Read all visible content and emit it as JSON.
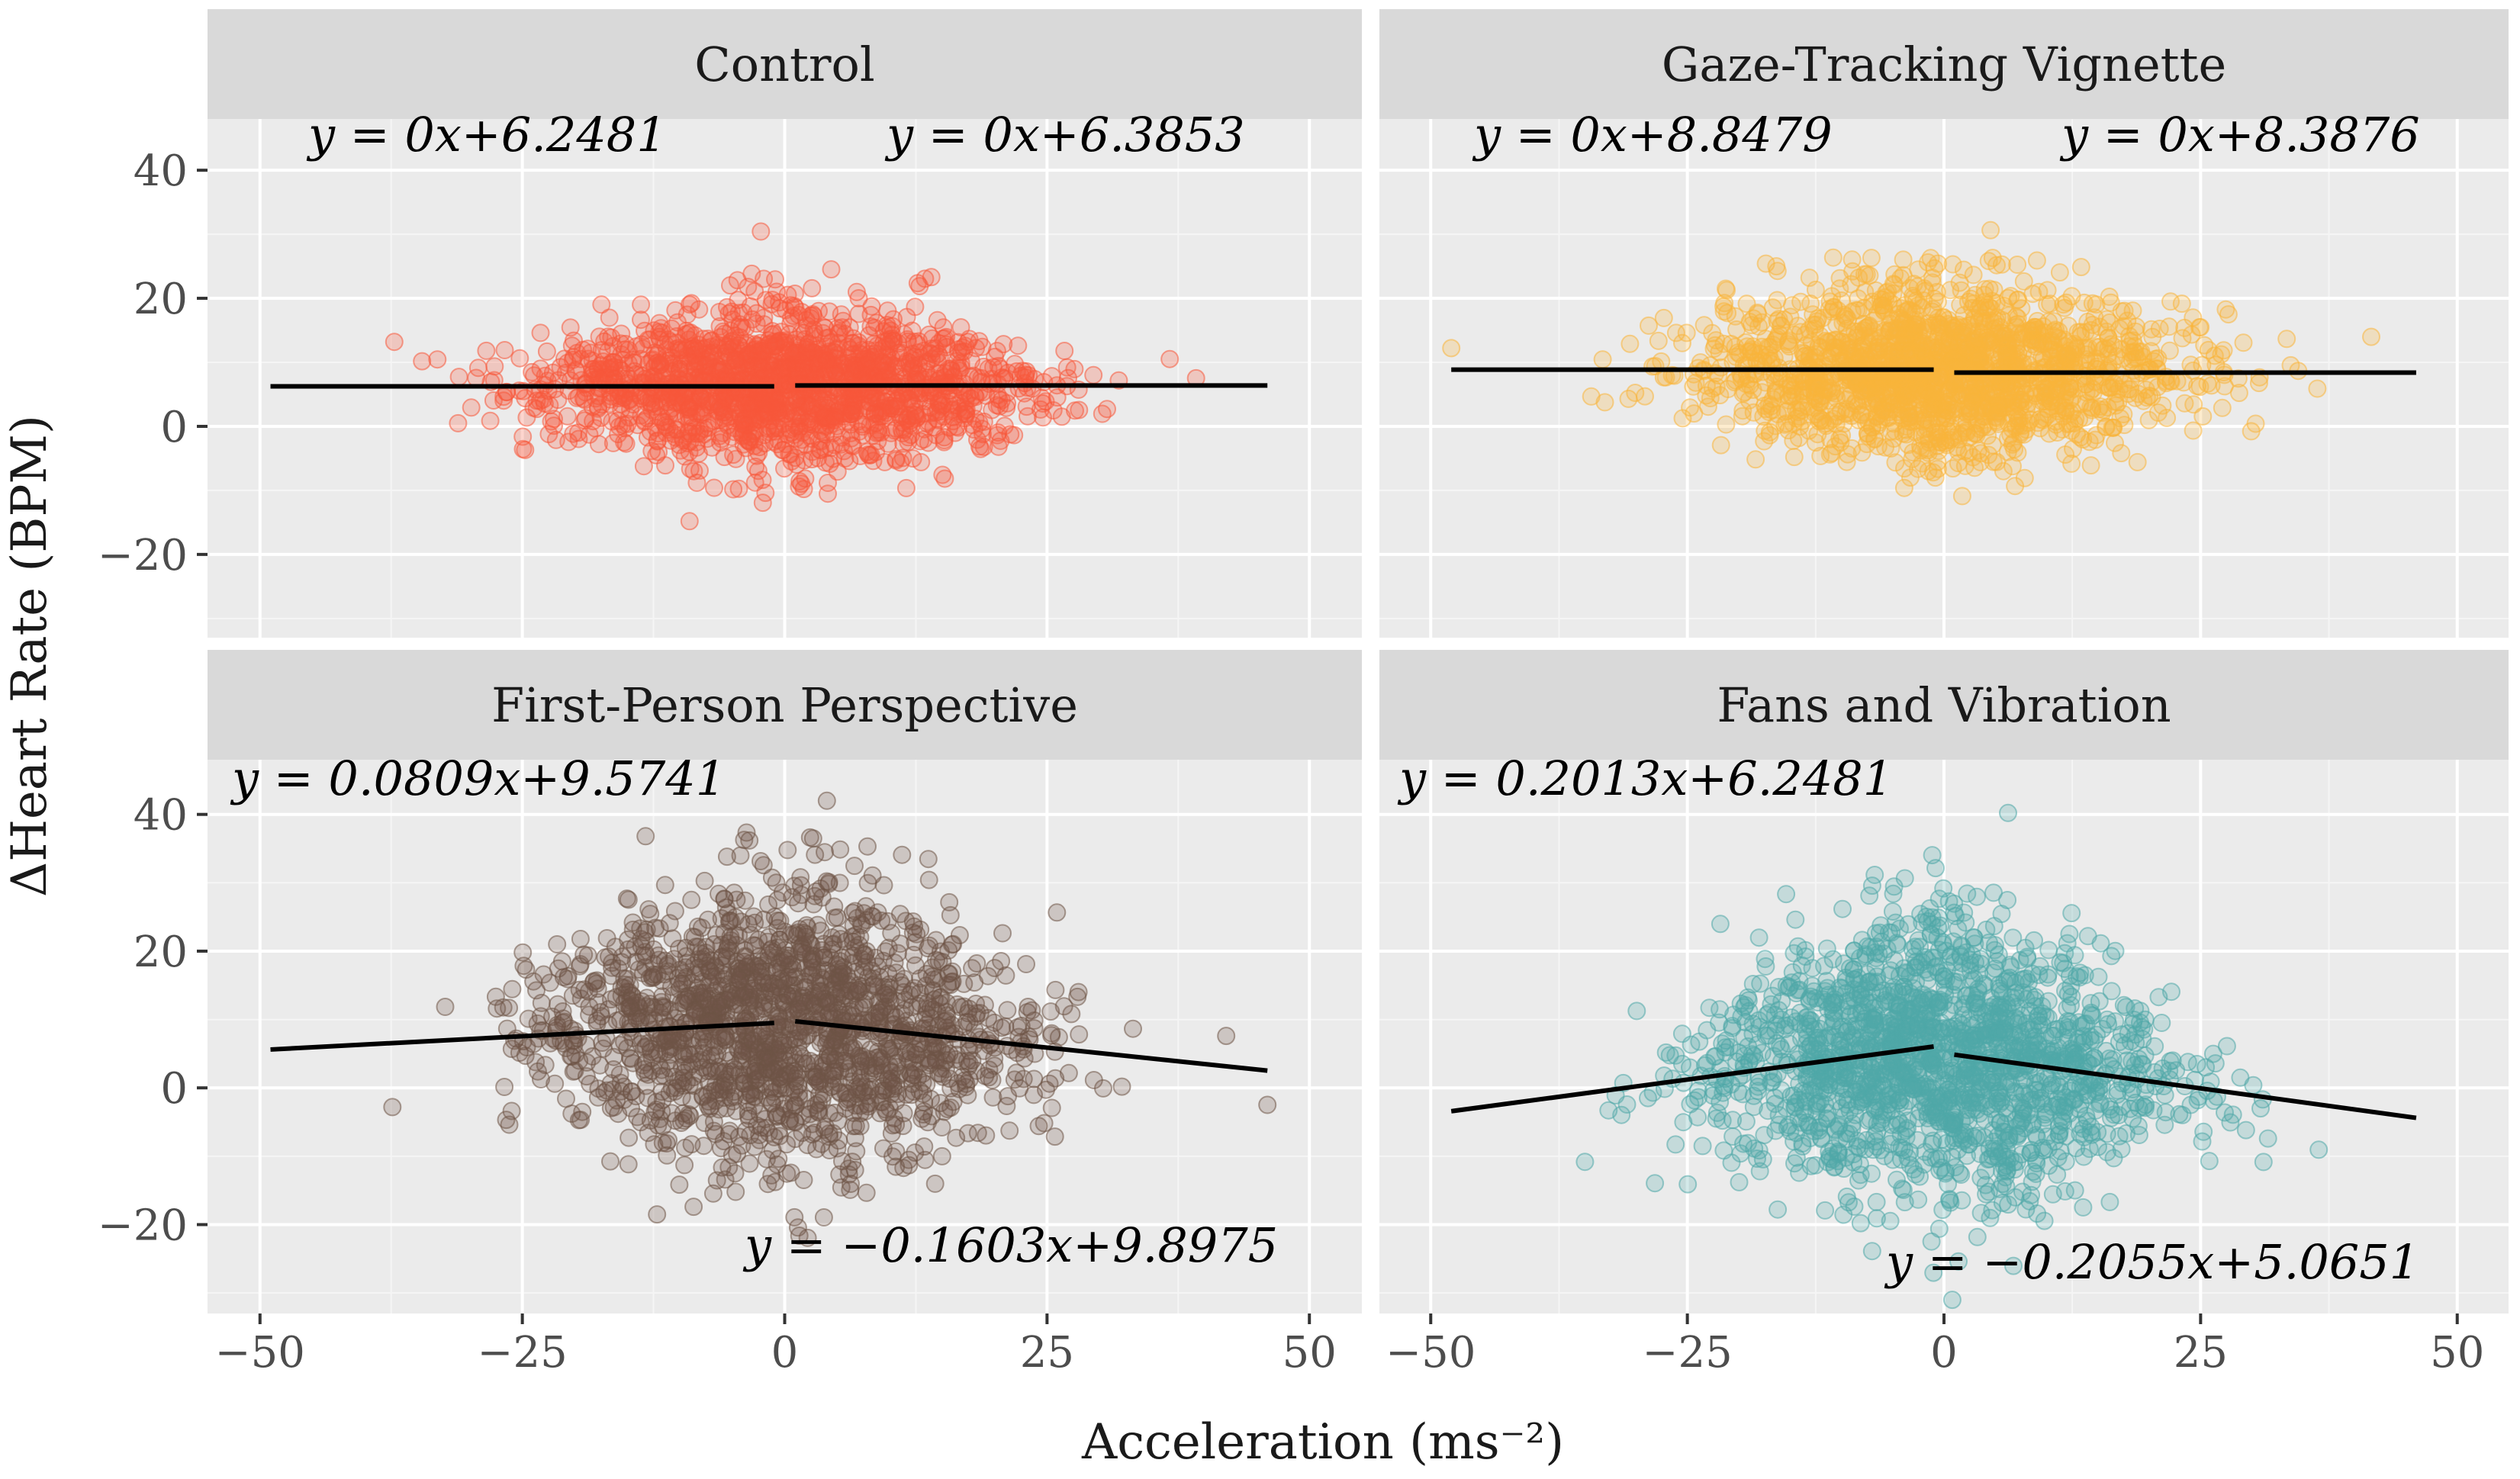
{
  "chart_data": {
    "type": "scatter",
    "xlabel": "Acceleration (ms⁻²)",
    "ylabel": "ΔHeart Rate (BPM)",
    "xlim": [
      -55,
      55
    ],
    "ylim": [
      -33,
      48
    ],
    "x_ticks": [
      -50,
      -25,
      0,
      25,
      50
    ],
    "x_tick_labels": [
      "−50",
      "−25",
      "0",
      "25",
      "50"
    ],
    "y_ticks": [
      -20,
      0,
      20,
      40
    ],
    "y_tick_labels": [
      "−20",
      "0",
      "20",
      "40"
    ],
    "layout": "2x2 facets",
    "grid": true,
    "legend": "none",
    "point_alpha": 0.25,
    "panels": [
      {
        "title": "Control",
        "color": "#F8573A",
        "range": [
          -49,
          46
        ],
        "y_center": 6.3,
        "y_spread_center": 12,
        "y_spread_edge": 6,
        "fits": [
          {
            "label": "y = 0x+6.2481",
            "slope": 0,
            "intercept": 6.2481,
            "x_range": [
              -49,
              -1
            ]
          },
          {
            "label": "y = 0x+6.3853",
            "slope": 0,
            "intercept": 6.3853,
            "x_range": [
              1,
              46
            ]
          }
        ]
      },
      {
        "title": "Gaze-Tracking Vignette",
        "color": "#F9B43B",
        "range": [
          -48,
          46
        ],
        "y_center": 8.6,
        "y_spread_center": 13,
        "y_spread_edge": 8,
        "fits": [
          {
            "label": "y = 0x+8.8479",
            "slope": 0,
            "intercept": 8.8479,
            "x_range": [
              -48,
              -1
            ]
          },
          {
            "label": "y = 0x+8.3876",
            "slope": 0,
            "intercept": 8.3876,
            "x_range": [
              1,
              46
            ]
          }
        ]
      },
      {
        "title": "First-Person Perspective",
        "color": "#6E5346",
        "range": [
          -49,
          46
        ],
        "y_center": 9.7,
        "y_spread_center": 20,
        "y_spread_edge": 10,
        "fits": [
          {
            "label": "y = 0.0809x+9.5741",
            "slope": 0.0809,
            "intercept": 9.5741,
            "x_range": [
              -49,
              -1
            ]
          },
          {
            "label": "y = −0.1603x+9.8975",
            "slope": -0.1603,
            "intercept": 9.8975,
            "x_range": [
              1,
              46
            ]
          }
        ]
      },
      {
        "title": "Fans and Vibration",
        "color": "#4FA8A7",
        "range": [
          -48,
          46
        ],
        "y_center": 5.5,
        "y_spread_center": 20,
        "y_spread_edge": 8,
        "fits": [
          {
            "label": "y = 0.2013x+6.2481",
            "slope": 0.2013,
            "intercept": 6.2481,
            "x_range": [
              -48,
              -1
            ]
          },
          {
            "label": "y = −0.2055x+5.0651",
            "slope": -0.2055,
            "intercept": 5.0651,
            "x_range": [
              1,
              46
            ]
          }
        ]
      }
    ]
  }
}
